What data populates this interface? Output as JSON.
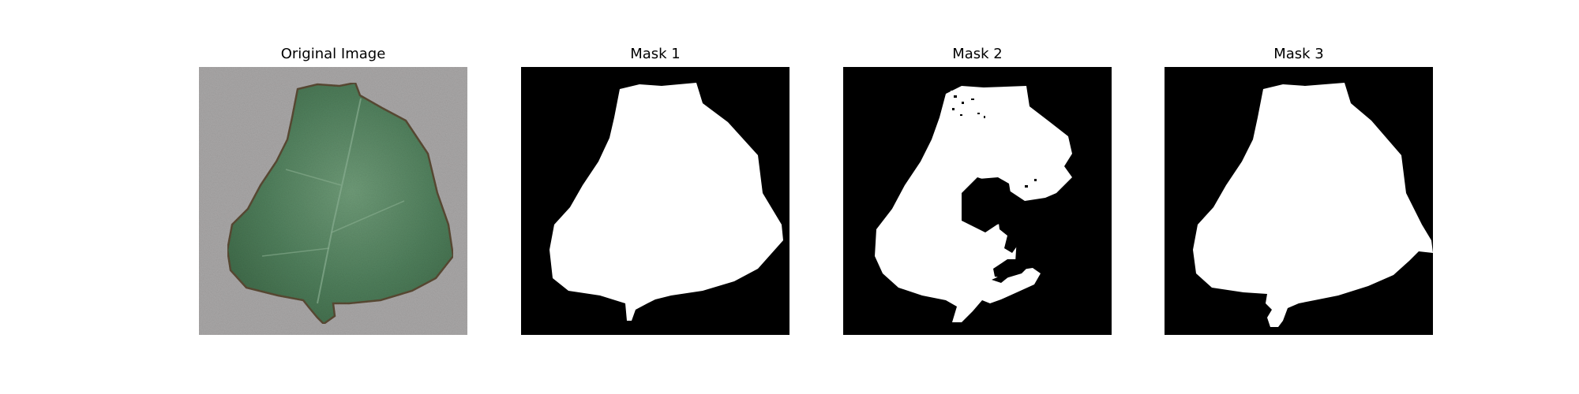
{
  "panels": [
    {
      "title": "Original Image"
    },
    {
      "title": "Mask 1"
    },
    {
      "title": "Mask 2"
    },
    {
      "title": "Mask 3"
    }
  ],
  "colors": {
    "background": "#ffffff",
    "mask_bg": "#000000",
    "mask_fg": "#ffffff",
    "photo_bg": "#a8a6a6",
    "leaf_green": "#4f7a58",
    "leaf_edge": "#6b5a3e"
  }
}
